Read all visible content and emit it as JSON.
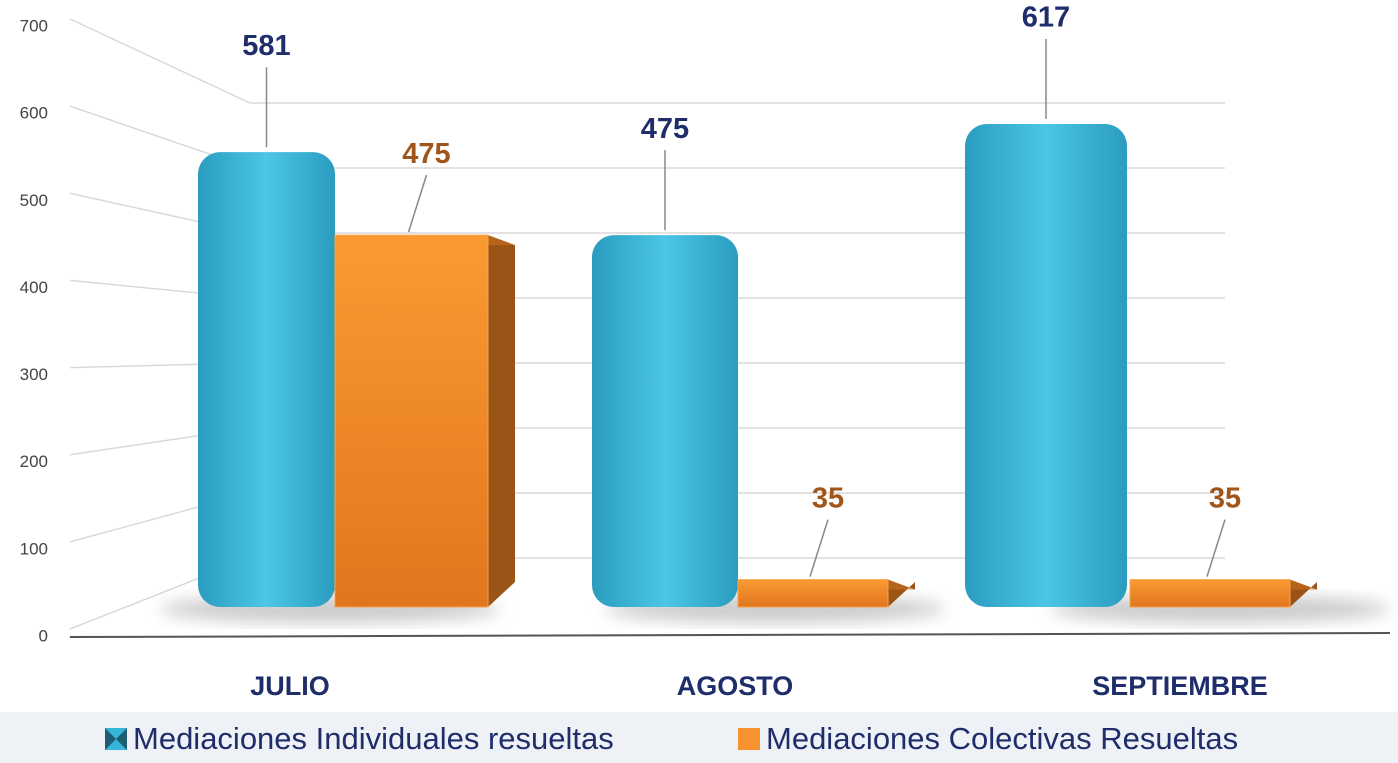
{
  "chart_data": {
    "type": "bar",
    "categories": [
      "JULIO",
      "AGOSTO",
      "SEPTIEMBRE"
    ],
    "series": [
      {
        "name": "Mediaciones Individuales resueltas",
        "color": "#35b6d8",
        "values": [
          581,
          475,
          617
        ]
      },
      {
        "name": "Mediaciones Colectivas Resueltas",
        "color": "#f7922e",
        "values": [
          475,
          35,
          35
        ]
      }
    ],
    "ylim": [
      0,
      700
    ],
    "yticks": [
      0,
      100,
      200,
      300,
      400,
      500,
      600,
      700
    ],
    "grid": true,
    "legend": "bottom"
  }
}
